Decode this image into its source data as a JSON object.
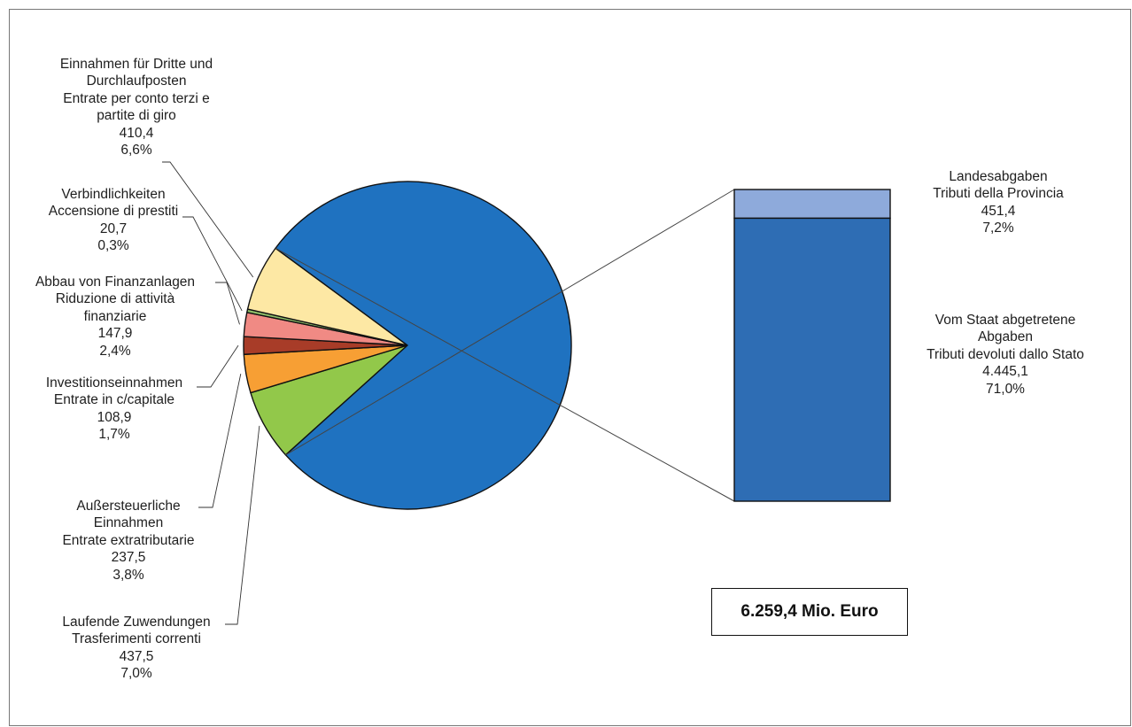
{
  "chart_data": [
    {
      "type": "pie",
      "slices": [
        {
          "id": "laufende",
          "label_de": "Laufende Zuwendungen",
          "label_it": "Trasferimenti correnti",
          "value_text": "437,5",
          "percent_text": "7,0%",
          "value": 437.5,
          "percent": 7.0,
          "color": "#92c84a"
        },
        {
          "id": "ausser",
          "label_de": "Außersteuerliche Einnahmen",
          "label_it": "Entrate extratributarie",
          "value_text": "237,5",
          "percent_text": "3,8%",
          "value": 237.5,
          "percent": 3.8,
          "color": "#f79f34"
        },
        {
          "id": "invest",
          "label_de": "Investitionseinnahmen",
          "label_it": "Entrate in c/capitale",
          "value_text": "108,9",
          "percent_text": "1,7%",
          "value": 108.9,
          "percent": 1.7,
          "color": "#a83c28"
        },
        {
          "id": "abbau",
          "label_de": "Abbau von Finanzanlagen",
          "label_it": "Riduzione di attività finanziarie",
          "value_text": "147,9",
          "percent_text": "2,4%",
          "value": 147.9,
          "percent": 2.4,
          "color": "#f08a84"
        },
        {
          "id": "verbind",
          "label_de": "Verbindlichkeiten",
          "label_it": "Accensione di prestiti",
          "value_text": "20,7",
          "percent_text": "0,3%",
          "value": 20.7,
          "percent": 0.3,
          "color": "#8fbf6a"
        },
        {
          "id": "dritte",
          "label_de": "Einnahmen für Dritte und Durchlaufposten",
          "label_it": "Entrate per conto terzi e partite di giro",
          "value_text": "410,4",
          "percent_text": "6,6%",
          "value": 410.4,
          "percent": 6.6,
          "color": "#fde8a4"
        },
        {
          "id": "tributi",
          "label_de": "",
          "label_it": "",
          "value_text": "",
          "percent_text": "",
          "value": 4896.5,
          "percent": 78.2,
          "color": "#1f72c0",
          "exploded_to_bar": true
        }
      ]
    },
    {
      "type": "bar",
      "stacked": true,
      "segments": [
        {
          "id": "landes",
          "label_de": "Landesabgaben",
          "label_it": "Tributi della Provincia",
          "value_text": "451,4",
          "percent_text": "7,2%",
          "value": 451.4,
          "percent": 7.2,
          "color": "#8eaadb"
        },
        {
          "id": "staat",
          "label_de": "Vom Staat abgetretene Abgaben",
          "label_it": "Tributi devoluti dallo Stato",
          "value_text": "4.445,1",
          "percent_text": "71,0%",
          "value": 4445.1,
          "percent": 71.0,
          "color": "#2e6db4"
        }
      ]
    }
  ],
  "labels": {
    "dritte": {
      "lines": [
        "Einnahmen für Dritte und",
        "Durchlaufposten",
        "Entrate per conto terzi e",
        "partite di giro",
        "410,4",
        "6,6%"
      ]
    },
    "verbind": {
      "lines": [
        "Verbindlichkeiten",
        "Accensione di prestiti",
        "20,7",
        "0,3%"
      ]
    },
    "abbau": {
      "lines": [
        "Abbau von Finanzanlagen",
        "Riduzione di attività",
        "finanziarie",
        "147,9",
        "2,4%"
      ]
    },
    "invest": {
      "lines": [
        "Investitionseinnahmen",
        "Entrate in c/capitale",
        "108,9",
        "1,7%"
      ]
    },
    "ausser": {
      "lines": [
        "Außersteuerliche",
        "Einnahmen",
        "Entrate extratributarie",
        "237,5",
        "3,8%"
      ]
    },
    "laufende": {
      "lines": [
        "Laufende Zuwendungen",
        "Trasferimenti correnti",
        "437,5",
        "7,0%"
      ]
    },
    "landes": {
      "lines": [
        "Landesabgaben",
        "Tributi della Provincia",
        "451,4",
        "7,2%"
      ]
    },
    "staat": {
      "lines": [
        "Vom Staat abgetretene",
        "Abgaben",
        "Tributi devoluti dallo Stato",
        "4.445,1",
        "71,0%"
      ]
    }
  },
  "total": "6.259,4 Mio. Euro"
}
